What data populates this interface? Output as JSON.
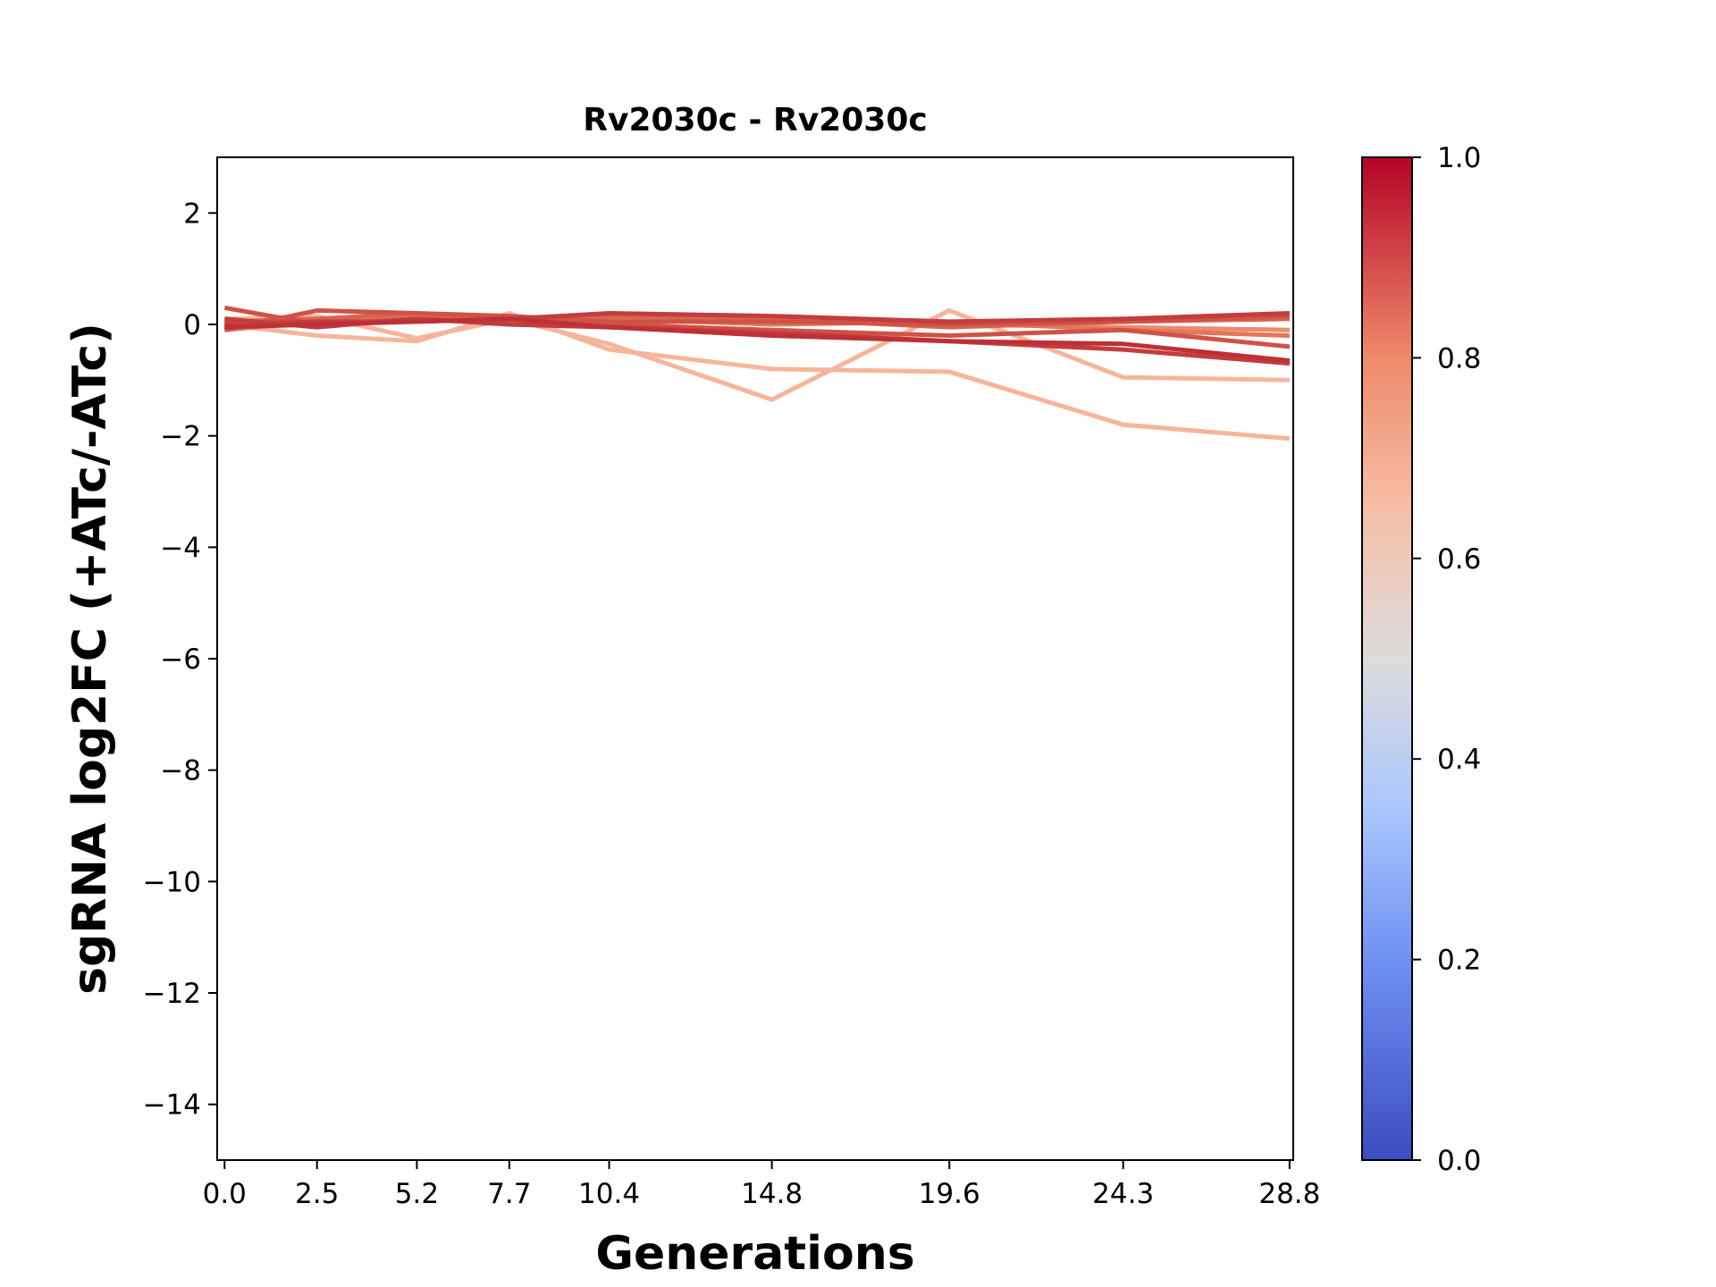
{
  "chart_data": {
    "type": "line",
    "title": "Rv2030c - Rv2030c",
    "xlabel": "Generations",
    "ylabel": "sgRNA log2FC (+ATc/-ATc)",
    "x": [
      0.0,
      2.5,
      5.2,
      7.7,
      10.4,
      14.8,
      19.6,
      24.3,
      28.8
    ],
    "x_tick_labels": [
      "0.0",
      "2.5",
      "5.2",
      "7.7",
      "10.4",
      "14.8",
      "19.6",
      "24.3",
      "28.8"
    ],
    "xlim": [
      -0.2,
      28.9
    ],
    "ylim": [
      -15,
      3
    ],
    "y_ticks": [
      2,
      0,
      -2,
      -4,
      -6,
      -8,
      -10,
      -12,
      -14
    ],
    "y_tick_labels": [
      "2",
      "0",
      "−2",
      "−4",
      "−6",
      "−8",
      "−10",
      "−12",
      "−14"
    ],
    "colorbar": {
      "colormap": "coolwarm",
      "range": [
        0.0,
        1.0
      ],
      "ticks": [
        0.0,
        0.2,
        0.4,
        0.6,
        0.8,
        1.0
      ],
      "tick_labels": [
        "0.0",
        "0.2",
        "0.4",
        "0.6",
        "0.8",
        "1.0"
      ],
      "stops": [
        {
          "offset": 0.0,
          "color": "#3b4cc0"
        },
        {
          "offset": 0.2,
          "color": "#6f91f2"
        },
        {
          "offset": 0.35,
          "color": "#aac7fd"
        },
        {
          "offset": 0.5,
          "color": "#dddcdc"
        },
        {
          "offset": 0.65,
          "color": "#f6bfa6"
        },
        {
          "offset": 0.8,
          "color": "#ef8a6a"
        },
        {
          "offset": 1.0,
          "color": "#b40426"
        }
      ]
    },
    "series": [
      {
        "color_value": 0.7,
        "color": "#f5b59a",
        "values": [
          0.0,
          -0.2,
          -0.3,
          0.2,
          -0.45,
          -0.8,
          -0.85,
          -1.8,
          -2.05
        ]
      },
      {
        "color_value": 0.7,
        "color": "#f5b59a",
        "values": [
          0.1,
          0.15,
          -0.25,
          0.1,
          -0.35,
          -1.35,
          0.25,
          -0.95,
          -1.0
        ]
      },
      {
        "color_value": 0.82,
        "color": "#ec8b6d",
        "values": [
          0.0,
          0.05,
          0.1,
          0.1,
          0.1,
          0.05,
          0.0,
          -0.05,
          -0.1
        ]
      },
      {
        "color_value": 0.86,
        "color": "#e27759",
        "values": [
          -0.1,
          0.05,
          0.15,
          0.05,
          0.1,
          0.0,
          0.05,
          -0.1,
          -0.2
        ]
      },
      {
        "color_value": 0.9,
        "color": "#d86451",
        "values": [
          0.05,
          0.1,
          0.2,
          0.1,
          0.15,
          0.1,
          -0.05,
          0.05,
          0.1
        ]
      },
      {
        "color_value": 0.93,
        "color": "#cf5246",
        "values": [
          0.3,
          0.0,
          0.1,
          0.05,
          0.0,
          -0.1,
          -0.2,
          -0.1,
          -0.4
        ]
      },
      {
        "color_value": 0.93,
        "color": "#cf5246",
        "values": [
          -0.1,
          0.25,
          0.2,
          0.15,
          0.05,
          0.05,
          0.0,
          0.05,
          0.15
        ]
      },
      {
        "color_value": 0.96,
        "color": "#c43c3c",
        "values": [
          0.1,
          -0.05,
          0.1,
          0.0,
          -0.05,
          -0.15,
          -0.3,
          -0.45,
          -0.7
        ]
      },
      {
        "color_value": 0.96,
        "color": "#c43c3c",
        "values": [
          0.0,
          0.05,
          0.05,
          0.1,
          0.2,
          0.15,
          0.05,
          0.1,
          0.2
        ]
      },
      {
        "color_value": 0.98,
        "color": "#be3036",
        "values": [
          -0.05,
          0.0,
          0.05,
          0.1,
          -0.05,
          -0.2,
          -0.3,
          -0.35,
          -0.65
        ]
      }
    ]
  }
}
